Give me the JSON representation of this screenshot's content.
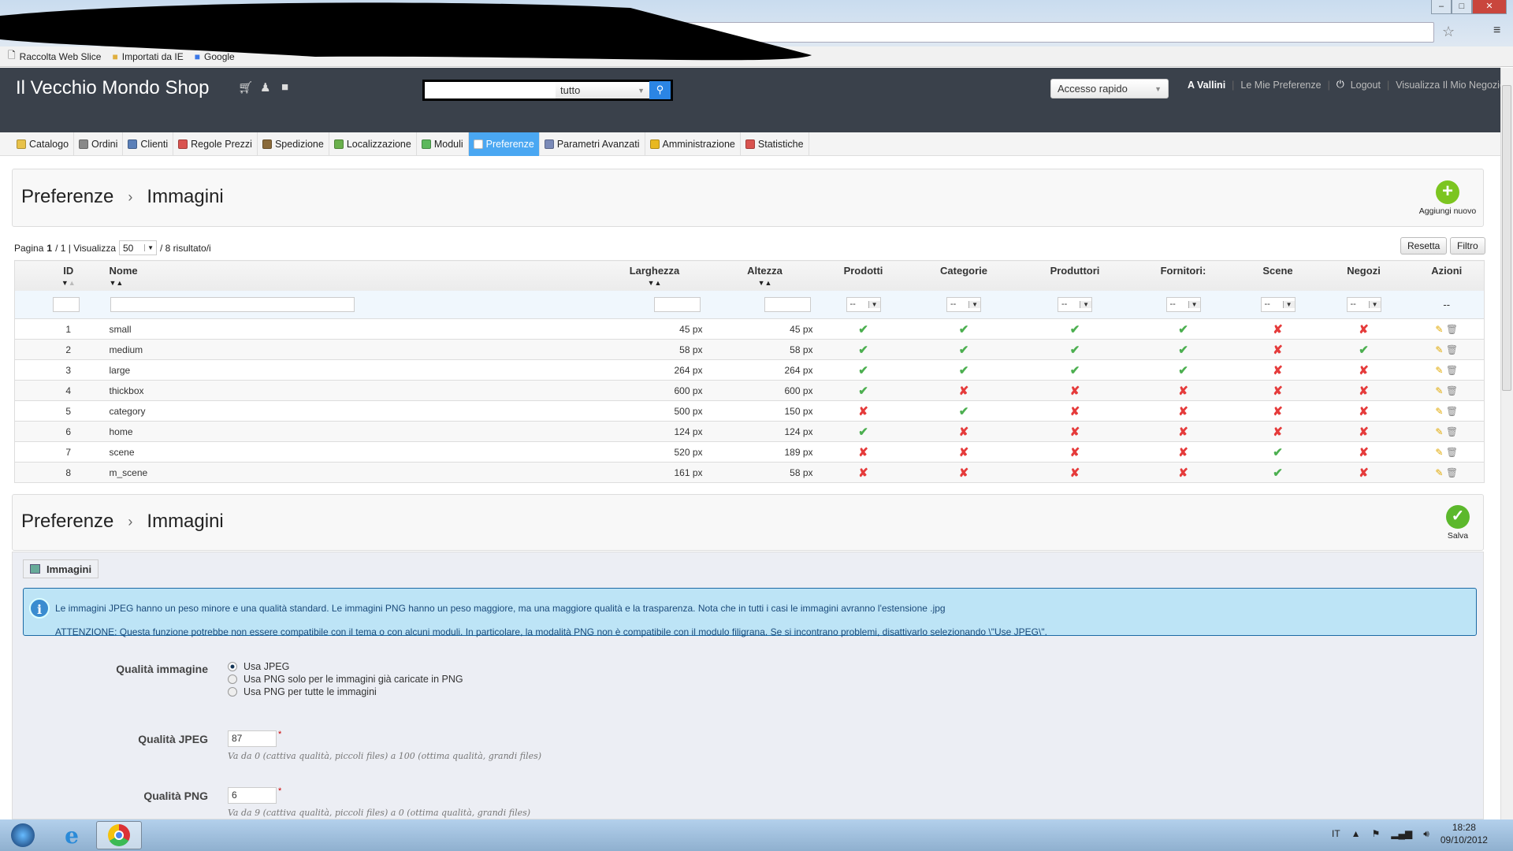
{
  "browser": {
    "bookmarks": [
      "Raccolta Web Slice",
      "Importati da IE",
      "Google"
    ]
  },
  "header": {
    "title": "Il Vecchio Mondo Shop",
    "search_scope": "tutto",
    "quick_access": "Accesso rapido",
    "user": "A Vallini",
    "my_prefs": "Le Mie Preferenze",
    "logout": "Logout",
    "view_shop": "Visualizza Il Mio Negozio"
  },
  "tabs": [
    {
      "label": "Catalogo",
      "color": "#e8c24a"
    },
    {
      "label": "Ordini",
      "color": "#888888"
    },
    {
      "label": "Clienti",
      "color": "#5a7fb8"
    },
    {
      "label": "Regole Prezzi",
      "color": "#d9534f"
    },
    {
      "label": "Spedizione",
      "color": "#8a6a3a"
    },
    {
      "label": "Localizzazione",
      "color": "#6ab04c"
    },
    {
      "label": "Moduli",
      "color": "#5cb85c"
    },
    {
      "label": "Preferenze",
      "color": "#ffffff",
      "active": true
    },
    {
      "label": "Parametri Avanzati",
      "color": "#7a8ab8"
    },
    {
      "label": "Amministrazione",
      "color": "#e8b820"
    },
    {
      "label": "Statistiche",
      "color": "#d9534f"
    }
  ],
  "list_panel": {
    "crumb1": "Preferenze",
    "crumb2": "Immagini",
    "add_label": "Aggiungi nuovo"
  },
  "pager": {
    "page_label": "Pagina",
    "page": "1",
    "total_pages": "/ 1 | Visualizza",
    "per_page": "50",
    "results": "/ 8 risultato/i",
    "reset": "Resetta",
    "filter": "Filtro"
  },
  "table": {
    "headers": {
      "id": "ID",
      "name": "Nome",
      "width": "Larghezza",
      "height": "Altezza",
      "products": "Prodotti",
      "categories": "Categorie",
      "manufacturers": "Produttori",
      "suppliers": "Fornitori:",
      "scenes": "Scene",
      "stores": "Negozi",
      "actions": "Azioni"
    },
    "filter_placeholder": "--",
    "rows": [
      {
        "id": "1",
        "name": "small",
        "width": "45 px",
        "height": "45 px",
        "flags": [
          true,
          true,
          true,
          true,
          false,
          false
        ]
      },
      {
        "id": "2",
        "name": "medium",
        "width": "58 px",
        "height": "58 px",
        "flags": [
          true,
          true,
          true,
          true,
          false,
          true
        ]
      },
      {
        "id": "3",
        "name": "large",
        "width": "264 px",
        "height": "264 px",
        "flags": [
          true,
          true,
          true,
          true,
          false,
          false
        ]
      },
      {
        "id": "4",
        "name": "thickbox",
        "width": "600 px",
        "height": "600 px",
        "flags": [
          true,
          false,
          false,
          false,
          false,
          false
        ]
      },
      {
        "id": "5",
        "name": "category",
        "width": "500 px",
        "height": "150 px",
        "flags": [
          false,
          true,
          false,
          false,
          false,
          false
        ]
      },
      {
        "id": "6",
        "name": "home",
        "width": "124 px",
        "height": "124 px",
        "flags": [
          true,
          false,
          false,
          false,
          false,
          false
        ]
      },
      {
        "id": "7",
        "name": "scene",
        "width": "520 px",
        "height": "189 px",
        "flags": [
          false,
          false,
          false,
          false,
          true,
          false
        ]
      },
      {
        "id": "8",
        "name": "m_scene",
        "width": "161 px",
        "height": "58 px",
        "flags": [
          false,
          false,
          false,
          false,
          true,
          false
        ]
      }
    ]
  },
  "form_panel": {
    "crumb1": "Preferenze",
    "crumb2": "Immagini",
    "save_label": "Salva",
    "legend": "Immagini",
    "info1": "Le immagini JPEG hanno un peso minore e una qualità standard. Le immagini PNG hanno un peso maggiore, ma una maggiore qualità e la trasparenza. Nota che in tutti i casi le immagini avranno l'estensione .jpg",
    "info2": "ATTENZIONE: Questa funzione potrebbe non essere compatibile con il tema o con alcuni moduli. In particolare, la modalità PNG non è compatibile con il modulo filigrana. Se si incontrano problemi, disattivarlo selezionando \\\"Use JPEG\\\".",
    "quality_label": "Qualità immagine",
    "options": [
      "Usa JPEG",
      "Usa PNG solo per le immagini già caricate in PNG",
      "Usa PNG per tutte le immagini"
    ],
    "selected_option": 0,
    "jpeg_label": "Qualità JPEG",
    "jpeg_value": "87",
    "jpeg_hint": "Va da 0 (cattiva qualità, piccoli files) a 100 (ottima qualità, grandi files)",
    "png_label": "Qualità PNG",
    "png_value": "6",
    "png_hint": "Va da 9 (cattiva qualità, piccoli files) a 0 (ottima qualità, grandi files)",
    "required": "*"
  },
  "taskbar": {
    "lang": "IT",
    "time": "18:28",
    "date": "09/10/2012"
  }
}
